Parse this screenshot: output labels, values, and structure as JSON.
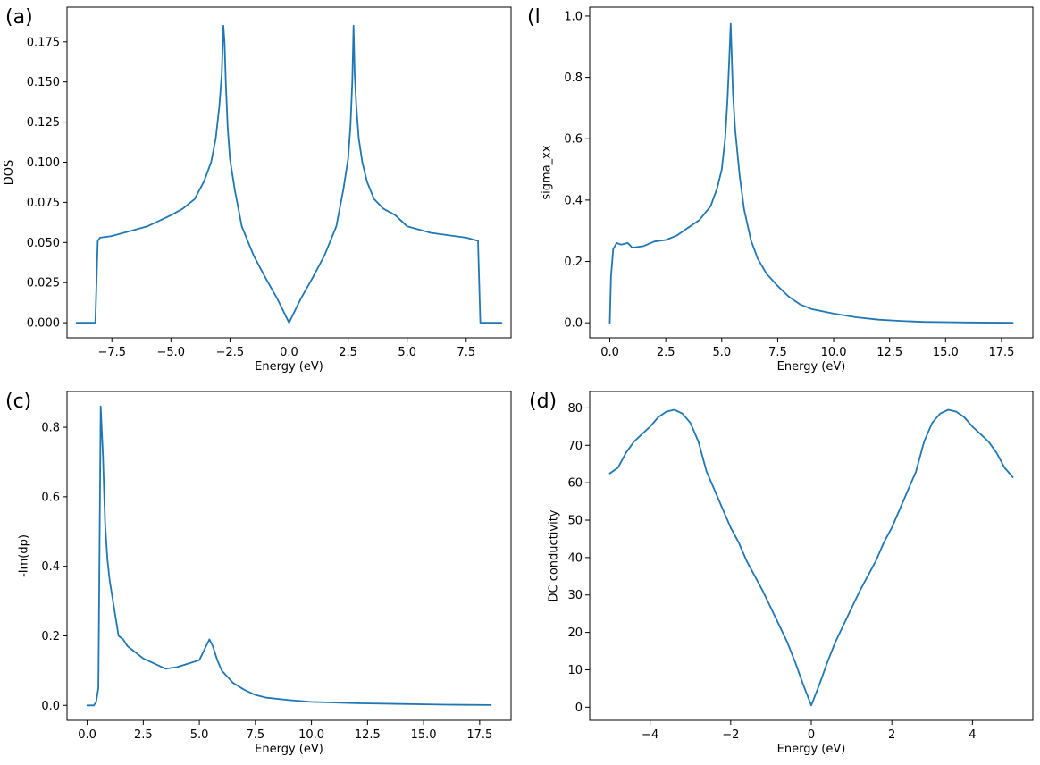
{
  "figure": {
    "line_color": "#1f77b4",
    "panels": [
      {
        "tag": "(a)"
      },
      {
        "tag": "(l"
      },
      {
        "tag": "(c)"
      },
      {
        "tag": "(d)"
      }
    ]
  },
  "chart_data": [
    {
      "type": "line",
      "title": "",
      "xlabel": "Energy (eV)",
      "ylabel": "DOS",
      "xlim": [
        -9.4,
        9.4
      ],
      "ylim": [
        -0.0094,
        0.1966
      ],
      "xticks": [
        -7.5,
        -5.0,
        -2.5,
        0.0,
        2.5,
        5.0,
        7.5
      ],
      "xtick_labels": [
        "−7.5",
        "−5.0",
        "−2.5",
        "0.0",
        "2.5",
        "5.0",
        "7.5"
      ],
      "yticks": [
        0.0,
        0.025,
        0.05,
        0.075,
        0.1,
        0.125,
        0.15,
        0.175
      ],
      "ytick_labels": [
        "0.000",
        "0.025",
        "0.050",
        "0.075",
        "0.100",
        "0.125",
        "0.150",
        "0.175"
      ],
      "grid": false,
      "x": [
        -9.0,
        -8.2,
        -8.1,
        -8.0,
        -7.5,
        -7.0,
        -6.0,
        -5.0,
        -4.5,
        -4.0,
        -3.6,
        -3.3,
        -3.1,
        -2.95,
        -2.85,
        -2.78,
        -2.73,
        -2.68,
        -2.6,
        -2.5,
        -2.3,
        -2.0,
        -1.5,
        -1.0,
        -0.5,
        0.0,
        0.5,
        1.0,
        1.5,
        2.0,
        2.3,
        2.5,
        2.6,
        2.68,
        2.73,
        2.78,
        2.85,
        2.95,
        3.1,
        3.3,
        3.6,
        4.0,
        4.5,
        5.0,
        6.0,
        7.0,
        7.5,
        8.0,
        8.1,
        8.2,
        9.0
      ],
      "values": [
        0.0,
        0.0,
        0.051,
        0.053,
        0.054,
        0.056,
        0.06,
        0.067,
        0.071,
        0.077,
        0.088,
        0.1,
        0.115,
        0.135,
        0.155,
        0.185,
        0.175,
        0.15,
        0.122,
        0.102,
        0.083,
        0.06,
        0.042,
        0.028,
        0.015,
        0.0,
        0.015,
        0.028,
        0.042,
        0.06,
        0.083,
        0.102,
        0.122,
        0.15,
        0.185,
        0.155,
        0.135,
        0.115,
        0.1,
        0.088,
        0.077,
        0.071,
        0.067,
        0.06,
        0.056,
        0.054,
        0.053,
        0.051,
        0.0,
        0.0,
        0.0
      ]
    },
    {
      "type": "line",
      "title": "",
      "xlabel": "Energy (eV)",
      "ylabel": "sigma_xx",
      "xlim": [
        -0.9,
        18.9
      ],
      "ylim": [
        -0.049,
        1.029
      ],
      "xticks": [
        0.0,
        2.5,
        5.0,
        7.5,
        10.0,
        12.5,
        15.0,
        17.5
      ],
      "xtick_labels": [
        "0.0",
        "2.5",
        "5.0",
        "7.5",
        "10.0",
        "12.5",
        "15.0",
        "17.5"
      ],
      "yticks": [
        0.0,
        0.2,
        0.4,
        0.6,
        0.8,
        1.0
      ],
      "ytick_labels": [
        "0.0",
        "0.2",
        "0.4",
        "0.6",
        "0.8",
        "1.0"
      ],
      "grid": false,
      "x": [
        0.0,
        0.05,
        0.15,
        0.3,
        0.5,
        0.8,
        1.0,
        1.5,
        2.0,
        2.5,
        3.0,
        3.5,
        4.0,
        4.5,
        4.8,
        5.0,
        5.15,
        5.25,
        5.33,
        5.4,
        5.5,
        5.6,
        5.8,
        6.0,
        6.3,
        6.6,
        7.0,
        7.5,
        8.0,
        8.5,
        9.0,
        10.0,
        11.0,
        12.0,
        13.0,
        14.0,
        15.0,
        16.0,
        18.0
      ],
      "values": [
        0.0,
        0.15,
        0.24,
        0.26,
        0.255,
        0.26,
        0.245,
        0.25,
        0.265,
        0.27,
        0.285,
        0.31,
        0.335,
        0.38,
        0.44,
        0.5,
        0.6,
        0.72,
        0.85,
        0.975,
        0.75,
        0.63,
        0.48,
        0.37,
        0.27,
        0.21,
        0.16,
        0.12,
        0.085,
        0.06,
        0.045,
        0.03,
        0.018,
        0.01,
        0.006,
        0.003,
        0.002,
        0.001,
        0.0
      ]
    },
    {
      "type": "line",
      "title": "",
      "xlabel": "Energy (eV)",
      "ylabel": "-Im(dp)",
      "xlim": [
        -0.9,
        18.9
      ],
      "ylim": [
        -0.043,
        0.903
      ],
      "xticks": [
        0.0,
        2.5,
        5.0,
        7.5,
        10.0,
        12.5,
        15.0,
        17.5
      ],
      "xtick_labels": [
        "0.0",
        "2.5",
        "5.0",
        "7.5",
        "10.0",
        "12.5",
        "15.0",
        "17.5"
      ],
      "yticks": [
        0.0,
        0.2,
        0.4,
        0.6,
        0.8
      ],
      "ytick_labels": [
        "0.0",
        "0.2",
        "0.4",
        "0.6",
        "0.8"
      ],
      "grid": false,
      "x": [
        0.0,
        0.3,
        0.4,
        0.5,
        0.6,
        0.7,
        0.8,
        0.9,
        1.0,
        1.2,
        1.4,
        1.6,
        1.8,
        2.0,
        2.5,
        3.0,
        3.5,
        4.0,
        4.5,
        5.0,
        5.3,
        5.45,
        5.6,
        5.8,
        6.0,
        6.5,
        7.0,
        7.5,
        8.0,
        9.0,
        10.0,
        12.0,
        14.0,
        16.0,
        18.0
      ],
      "values": [
        0.0,
        0.0,
        0.01,
        0.05,
        0.86,
        0.72,
        0.52,
        0.42,
        0.36,
        0.28,
        0.2,
        0.19,
        0.17,
        0.16,
        0.135,
        0.12,
        0.105,
        0.11,
        0.12,
        0.13,
        0.17,
        0.19,
        0.17,
        0.13,
        0.1,
        0.065,
        0.045,
        0.03,
        0.022,
        0.015,
        0.01,
        0.006,
        0.004,
        0.002,
        0.001
      ]
    },
    {
      "type": "line",
      "title": "",
      "xlabel": "Energy (eV)",
      "ylabel": "DC conductivity",
      "xlim": [
        -5.5,
        5.5
      ],
      "ylim": [
        -3.5,
        84.4
      ],
      "xticks": [
        -4,
        -2,
        0,
        2,
        4
      ],
      "xtick_labels": [
        "−4",
        "−2",
        "0",
        "2",
        "4"
      ],
      "yticks": [
        0,
        10,
        20,
        30,
        40,
        50,
        60,
        70,
        80
      ],
      "ytick_labels": [
        "0",
        "10",
        "20",
        "30",
        "40",
        "50",
        "60",
        "70",
        "80"
      ],
      "grid": false,
      "x": [
        -5.0,
        -4.8,
        -4.6,
        -4.4,
        -4.2,
        -4.0,
        -3.8,
        -3.6,
        -3.4,
        -3.2,
        -3.0,
        -2.8,
        -2.6,
        -2.4,
        -2.2,
        -2.0,
        -1.8,
        -1.6,
        -1.4,
        -1.2,
        -1.0,
        -0.8,
        -0.6,
        -0.4,
        -0.2,
        0.0,
        0.2,
        0.4,
        0.6,
        0.8,
        1.0,
        1.2,
        1.4,
        1.6,
        1.8,
        2.0,
        2.2,
        2.4,
        2.6,
        2.8,
        3.0,
        3.2,
        3.4,
        3.6,
        3.8,
        4.0,
        4.2,
        4.4,
        4.6,
        4.8,
        5.0
      ],
      "values": [
        62.5,
        64.0,
        68.0,
        71.0,
        73.0,
        75.0,
        77.5,
        79.0,
        79.5,
        78.5,
        76.0,
        71.0,
        63.0,
        58.0,
        53.0,
        48.0,
        44.0,
        39.0,
        35.0,
        31.0,
        26.5,
        22.0,
        17.5,
        12.0,
        6.0,
        0.5,
        6.0,
        12.0,
        17.5,
        22.0,
        26.5,
        31.0,
        35.0,
        39.0,
        44.0,
        48.0,
        53.0,
        58.0,
        63.0,
        71.0,
        76.0,
        78.5,
        79.5,
        79.0,
        77.5,
        75.0,
        73.0,
        71.0,
        68.0,
        64.0,
        61.5
      ]
    }
  ]
}
